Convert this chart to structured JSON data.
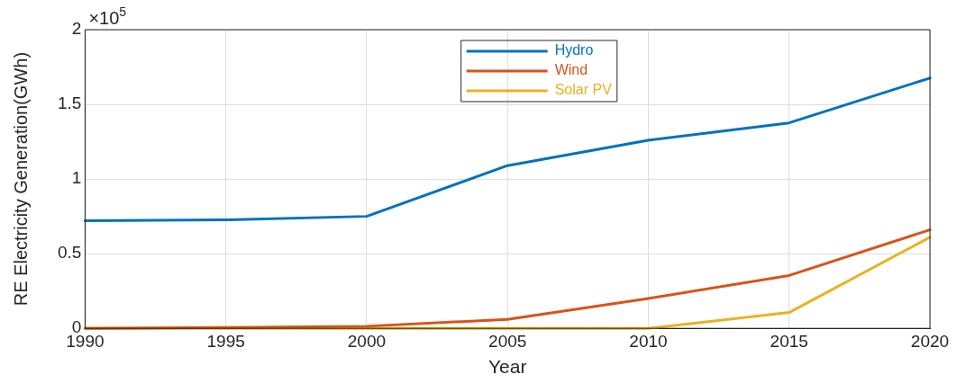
{
  "chart_data": {
    "type": "line",
    "xlabel": "Year",
    "ylabel": "RE Electricity Generation(GWh)",
    "annotations": [
      "×10$^{5}$"
    ],
    "x": [
      1990,
      1995,
      2000,
      2005,
      2010,
      2015,
      2020
    ],
    "series": [
      {
        "name": "Hydro",
        "color": "#0072bd",
        "values": [
          0.72,
          0.726,
          0.75,
          1.09,
          1.26,
          1.376,
          1.676
        ]
      },
      {
        "name": "Wind",
        "color": "#d95319",
        "values": [
          0,
          0.005,
          0.014,
          0.06,
          0.2,
          0.354,
          0.66
        ]
      },
      {
        "name": "Solar PV",
        "color": "#edb120",
        "values": [
          0,
          0,
          0,
          0,
          0,
          0.106,
          0.61
        ]
      }
    ],
    "xlim": [
      1990,
      2020
    ],
    "xticks": [
      1990,
      1995,
      2000,
      2005,
      2010,
      2015,
      2020
    ],
    "ylim": [
      0,
      2
    ],
    "yticks": [
      0,
      0.5,
      1,
      1.5,
      2
    ],
    "grid": true,
    "legend": "top",
    "marker": "none",
    "line_style": "solid"
  }
}
